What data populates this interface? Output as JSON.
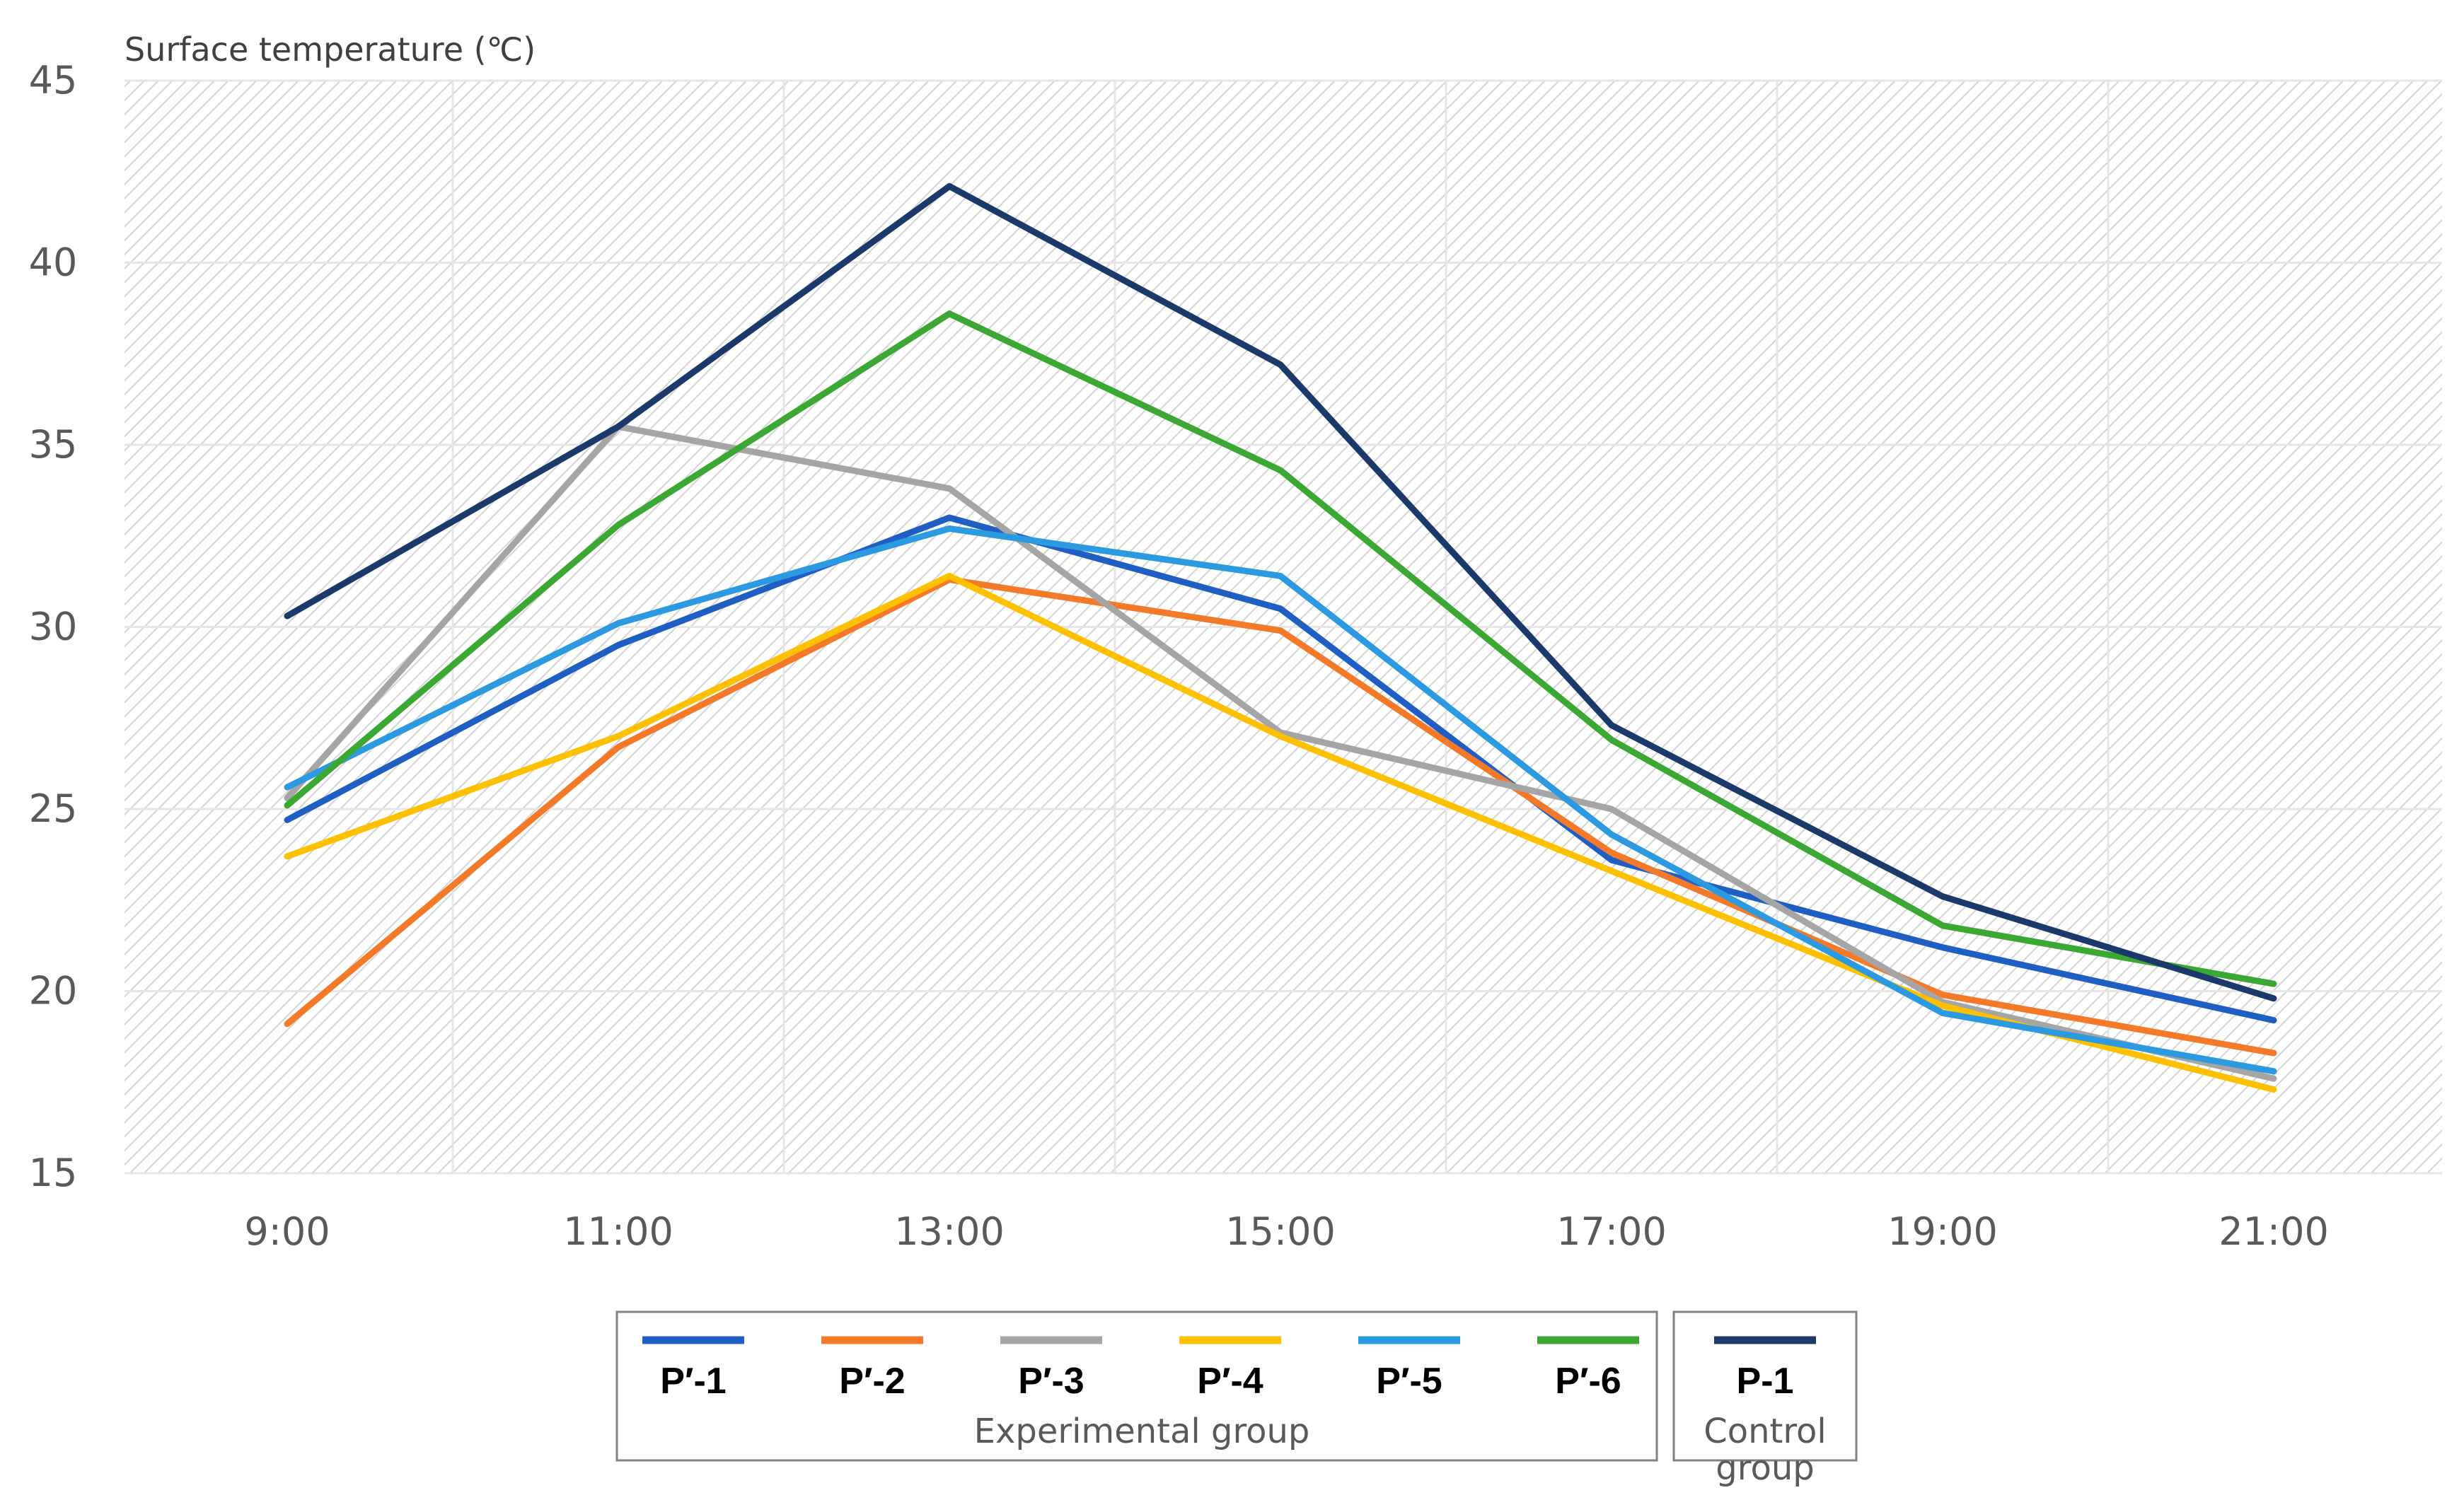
{
  "chart_data": {
    "type": "line",
    "ylabel": "Surface temperature (℃)",
    "xlabel": "",
    "categories": [
      "9:00",
      "11:00",
      "13:00",
      "15:00",
      "17:00",
      "19:00",
      "21:00"
    ],
    "ylim": [
      15,
      45
    ],
    "yticks": [
      15,
      20,
      25,
      30,
      35,
      40,
      45
    ],
    "grid": true,
    "series": [
      {
        "name": "P′-1",
        "color": "#1f5fc4",
        "group": "experimental",
        "values": [
          24.7,
          29.5,
          33.0,
          30.5,
          23.6,
          21.2,
          19.2
        ]
      },
      {
        "name": "P′-2",
        "color": "#f47a2a",
        "group": "experimental",
        "values": [
          19.1,
          26.7,
          31.3,
          29.9,
          23.8,
          19.9,
          18.3
        ]
      },
      {
        "name": "P′-3",
        "color": "#a5a5a5",
        "group": "experimental",
        "values": [
          25.3,
          35.5,
          33.8,
          27.1,
          25.0,
          19.7,
          17.6
        ]
      },
      {
        "name": "P′-4",
        "color": "#ffc000",
        "group": "experimental",
        "values": [
          23.7,
          27.0,
          31.4,
          27.0,
          23.3,
          19.6,
          17.3
        ]
      },
      {
        "name": "P′-5",
        "color": "#2b9ae0",
        "group": "experimental",
        "values": [
          25.6,
          30.1,
          32.7,
          31.4,
          24.3,
          19.4,
          17.8
        ]
      },
      {
        "name": "P′-6",
        "color": "#3aa832",
        "group": "experimental",
        "values": [
          25.1,
          32.8,
          38.6,
          34.3,
          26.9,
          21.8,
          20.2
        ]
      },
      {
        "name": "P-1",
        "color": "#1b3a6b",
        "group": "control",
        "values": [
          30.3,
          35.5,
          42.1,
          37.2,
          27.3,
          22.6,
          19.8
        ]
      }
    ],
    "legend": {
      "position": "bottom",
      "groups": [
        {
          "label": "Experimental group"
        },
        {
          "label_line1": "Control",
          "label_line2": "group"
        }
      ]
    }
  }
}
